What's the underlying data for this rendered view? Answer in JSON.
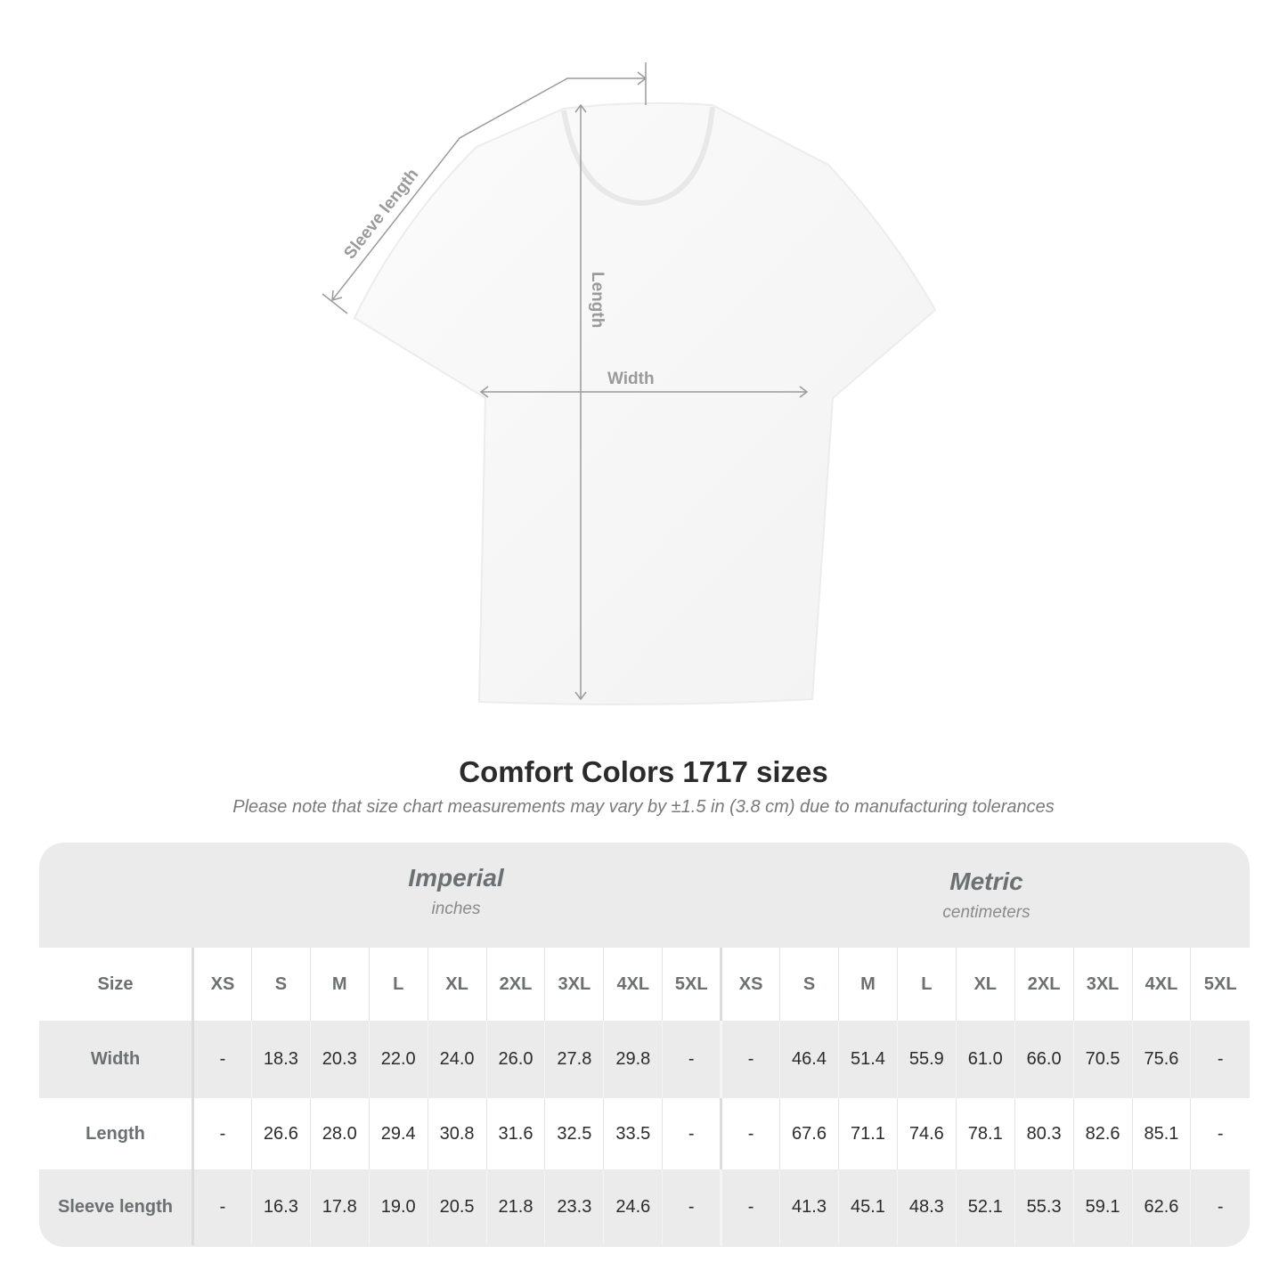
{
  "diagram": {
    "sleeve_label": "Sleeve length",
    "length_label": "Length",
    "width_label": "Width",
    "line_color": "#9a9a9a"
  },
  "title": "Comfort Colors 1717 sizes",
  "note": "Please note that size chart measurements may vary by ±1.5 in (3.8 cm) due to manufacturing tolerances",
  "imperial": {
    "name": "Imperial",
    "unit": "inches"
  },
  "metric": {
    "name": "Metric",
    "unit": "centimeters"
  },
  "table": {
    "size_label": "Size",
    "sizes": [
      "XS",
      "S",
      "M",
      "L",
      "XL",
      "2XL",
      "3XL",
      "4XL",
      "5XL"
    ],
    "rows": [
      {
        "label": "Width",
        "imperial": [
          "-",
          "18.3",
          "20.3",
          "22.0",
          "24.0",
          "26.0",
          "27.8",
          "29.8",
          "-"
        ],
        "metric": [
          "-",
          "46.4",
          "51.4",
          "55.9",
          "61.0",
          "66.0",
          "70.5",
          "75.6",
          "-"
        ]
      },
      {
        "label": "Length",
        "imperial": [
          "-",
          "26.6",
          "28.0",
          "29.4",
          "30.8",
          "31.6",
          "32.5",
          "33.5",
          "-"
        ],
        "metric": [
          "-",
          "67.6",
          "71.1",
          "74.6",
          "78.1",
          "80.3",
          "82.6",
          "85.1",
          "-"
        ]
      },
      {
        "label": "Sleeve length",
        "imperial": [
          "-",
          "16.3",
          "17.8",
          "19.0",
          "20.5",
          "21.8",
          "23.3",
          "24.6",
          "-"
        ],
        "metric": [
          "-",
          "41.3",
          "45.1",
          "48.3",
          "52.1",
          "55.3",
          "59.1",
          "62.6",
          "-"
        ]
      }
    ]
  }
}
